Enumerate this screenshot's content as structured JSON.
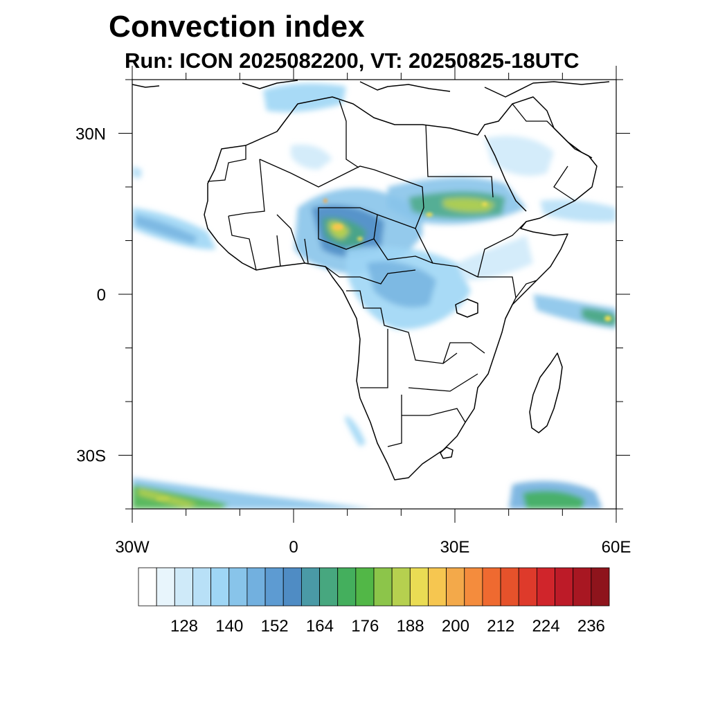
{
  "title": "Convection index",
  "subtitle": "Run: ICON 2025082200,  VT: 20250825-18UTC",
  "map": {
    "lat_range": [
      -40,
      40
    ],
    "lon_range": [
      -30,
      60
    ],
    "lat_labels": [
      {
        "lat": 30,
        "label": "30N"
      },
      {
        "lat": 0,
        "label": "0"
      },
      {
        "lat": -30,
        "label": "30S"
      }
    ],
    "lon_labels": [
      {
        "lon": -30,
        "label": "30W"
      },
      {
        "lon": 0,
        "label": "0"
      },
      {
        "lon": 30,
        "label": "30E"
      },
      {
        "lon": 60,
        "label": "60E"
      }
    ]
  },
  "colorbar": {
    "colors": [
      "#ffffff",
      "#e8f5fc",
      "#cfeaf9",
      "#b8e0f7",
      "#9fd6f5",
      "#88c4ea",
      "#72b0df",
      "#5d9bd2",
      "#4f8cc4",
      "#4a9aa6",
      "#47a77f",
      "#44af5d",
      "#52b747",
      "#8cc54a",
      "#b6d04f",
      "#eadc54",
      "#f6c650",
      "#f3a94a",
      "#f48c3d",
      "#ef6a30",
      "#e6522b",
      "#de3a2b",
      "#d0252b",
      "#bd1b28",
      "#a81722",
      "#8e141c"
    ],
    "tick_labels": [
      "128",
      "140",
      "152",
      "164",
      "176",
      "188",
      "200",
      "212",
      "224",
      "236"
    ]
  }
}
